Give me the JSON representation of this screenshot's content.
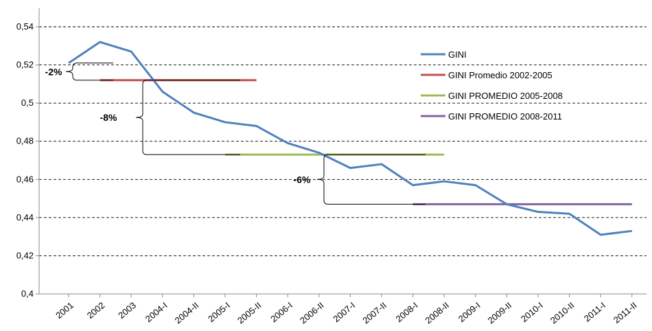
{
  "chart_data": {
    "type": "line",
    "title": "",
    "xlabel": "",
    "ylabel": "",
    "categories": [
      "2001",
      "2002",
      "2003",
      "2004-I",
      "2004-II",
      "2005-I",
      "2005-II",
      "2006-I",
      "2006-II",
      "2007-I",
      "2007-II",
      "2008-I",
      "2008-II",
      "2009-I",
      "2009-II",
      "2010-I",
      "2010-II",
      "2011-I",
      "2011-II"
    ],
    "ylim": [
      0.4,
      0.54
    ],
    "yticks": [
      "0,4",
      "0,42",
      "0,44",
      "0,46",
      "0,48",
      "0,5",
      "0,52",
      "0,54"
    ],
    "grid": true,
    "legend_position": "top-right",
    "series": [
      {
        "name": "GINI",
        "color": "#4f81bd",
        "values": [
          0.521,
          0.532,
          0.527,
          0.506,
          0.495,
          0.49,
          0.488,
          0.479,
          0.474,
          0.466,
          0.468,
          0.457,
          0.459,
          0.457,
          0.447,
          0.443,
          0.442,
          0.431,
          0.433
        ]
      },
      {
        "name": "GINI Promedio 2002-2005",
        "color": "#c0504d",
        "from": "2002",
        "to": "2005-II",
        "value": 0.512
      },
      {
        "name": "GINI PROMEDIO 2005-2008",
        "color": "#9bbb59",
        "from": "2005-I",
        "to": "2008-II",
        "value": 0.473
      },
      {
        "name": "GINI PROMEDIO 2008-2011",
        "color": "#8064a2",
        "from": "2008-I",
        "to": "2011-II",
        "value": 0.447
      }
    ],
    "annotations": [
      {
        "label": "-2%",
        "from": 0.521,
        "to": 0.512
      },
      {
        "label": "-8%",
        "from": 0.512,
        "to": 0.473
      },
      {
        "label": "-6%",
        "from": 0.473,
        "to": 0.447
      }
    ]
  }
}
